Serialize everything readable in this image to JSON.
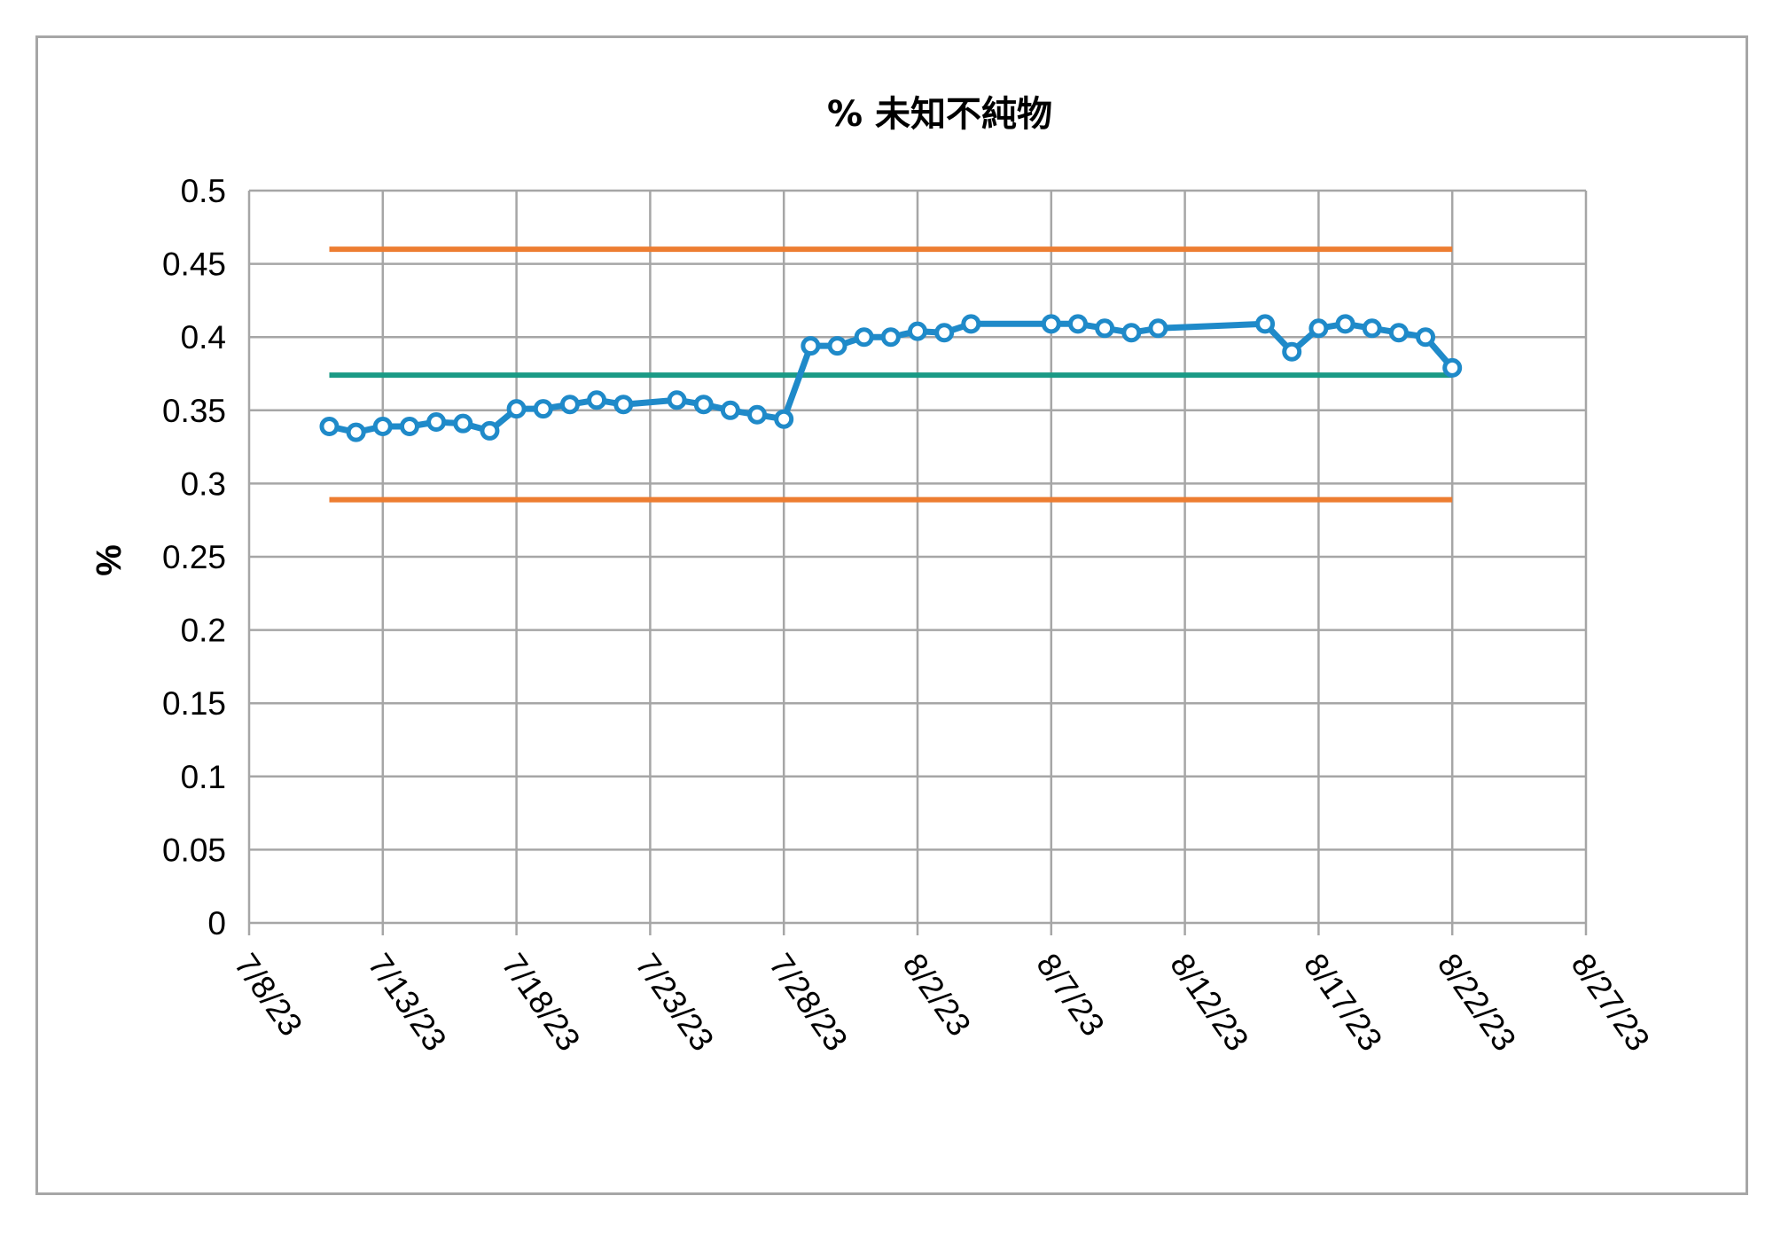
{
  "chart_data": {
    "type": "line",
    "title": "% 未知不純物",
    "xlabel": "",
    "ylabel": "%",
    "ylim": [
      0,
      0.5
    ],
    "yticks": [
      "0",
      "0.05",
      "0.1",
      "0.15",
      "0.2",
      "0.25",
      "0.3",
      "0.35",
      "0.4",
      "0.45",
      "0.5"
    ],
    "xlim": [
      "2023-07-08",
      "2023-08-27"
    ],
    "xticks": [
      "7/8/23",
      "7/13/23",
      "7/18/23",
      "7/23/23",
      "7/28/23",
      "8/2/23",
      "8/7/23",
      "8/12/23",
      "8/17/23",
      "8/22/23",
      "8/27/23"
    ],
    "grid": true,
    "legend": "none",
    "series": [
      {
        "color": "#1f8ac9",
        "marker": "open-circle",
        "points": [
          {
            "x": "2023-07-11",
            "y": 0.339
          },
          {
            "x": "2023-07-12",
            "y": 0.335
          },
          {
            "x": "2023-07-13",
            "y": 0.339
          },
          {
            "x": "2023-07-14",
            "y": 0.339
          },
          {
            "x": "2023-07-15",
            "y": 0.342
          },
          {
            "x": "2023-07-16",
            "y": 0.341
          },
          {
            "x": "2023-07-17",
            "y": 0.336
          },
          {
            "x": "2023-07-18",
            "y": 0.351
          },
          {
            "x": "2023-07-19",
            "y": 0.351
          },
          {
            "x": "2023-07-20",
            "y": 0.354
          },
          {
            "x": "2023-07-21",
            "y": 0.357
          },
          {
            "x": "2023-07-22",
            "y": 0.354
          },
          {
            "x": "2023-07-24",
            "y": 0.357
          },
          {
            "x": "2023-07-25",
            "y": 0.354
          },
          {
            "x": "2023-07-26",
            "y": 0.35
          },
          {
            "x": "2023-07-27",
            "y": 0.347
          },
          {
            "x": "2023-07-28",
            "y": 0.344
          },
          {
            "x": "2023-07-29",
            "y": 0.394
          },
          {
            "x": "2023-07-30",
            "y": 0.394
          },
          {
            "x": "2023-07-31",
            "y": 0.4
          },
          {
            "x": "2023-08-01",
            "y": 0.4
          },
          {
            "x": "2023-08-02",
            "y": 0.404
          },
          {
            "x": "2023-08-03",
            "y": 0.403
          },
          {
            "x": "2023-08-04",
            "y": 0.409
          },
          {
            "x": "2023-08-07",
            "y": 0.409
          },
          {
            "x": "2023-08-08",
            "y": 0.409
          },
          {
            "x": "2023-08-09",
            "y": 0.406
          },
          {
            "x": "2023-08-10",
            "y": 0.403
          },
          {
            "x": "2023-08-11",
            "y": 0.406
          },
          {
            "x": "2023-08-15",
            "y": 0.409
          },
          {
            "x": "2023-08-16",
            "y": 0.39
          },
          {
            "x": "2023-08-17",
            "y": 0.406
          },
          {
            "x": "2023-08-18",
            "y": 0.409
          },
          {
            "x": "2023-08-19",
            "y": 0.406
          },
          {
            "x": "2023-08-20",
            "y": 0.403
          },
          {
            "x": "2023-08-21",
            "y": 0.4
          },
          {
            "x": "2023-08-22",
            "y": 0.379
          }
        ]
      }
    ],
    "reference_lines": [
      {
        "color": "#ed7d31",
        "y": 0.46,
        "x_start": "2023-07-11",
        "x_end": "2023-08-22"
      },
      {
        "color": "#1a9a85",
        "y": 0.374,
        "x_start": "2023-07-11",
        "x_end": "2023-08-22"
      },
      {
        "color": "#ed7d31",
        "y": 0.289,
        "x_start": "2023-07-11",
        "x_end": "2023-08-22"
      }
    ],
    "colors": {
      "grid": "#a6a6a6",
      "frame": "#a6a6a6",
      "marker_fill": "#ffffff"
    }
  }
}
